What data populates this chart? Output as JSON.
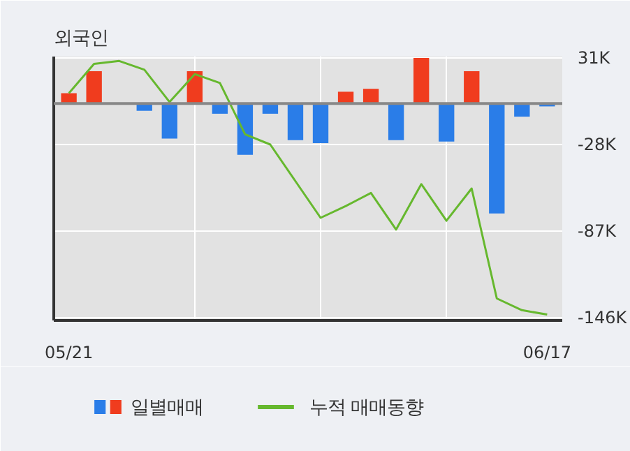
{
  "chart_data": {
    "type": "bar",
    "title": "외국인",
    "categories": [
      "05/21",
      null,
      null,
      null,
      null,
      null,
      null,
      null,
      null,
      null,
      null,
      null,
      null,
      null,
      null,
      null,
      null,
      null,
      null,
      "06/17"
    ],
    "series": [
      {
        "name": "일별매매",
        "values": [
          7,
          22,
          0,
          -5,
          -24,
          22,
          -7,
          -35,
          -7,
          -25,
          -27,
          8,
          10,
          -25,
          31,
          -26,
          22,
          -75,
          -9,
          -2
        ],
        "colors": [
          "#f03c1e",
          "#f03c1e",
          "#f03c1e",
          "#2a7de8",
          "#2a7de8",
          "#f03c1e",
          "#2a7de8",
          "#2a7de8",
          "#2a7de8",
          "#2a7de8",
          "#2a7de8",
          "#f03c1e",
          "#f03c1e",
          "#2a7de8",
          "#f03c1e",
          "#2a7de8",
          "#f03c1e",
          "#2a7de8",
          "#2a7de8",
          "#2a7de8"
        ]
      },
      {
        "name": "누적 매매동향",
        "type": "line",
        "color": "#66b82e",
        "values": [
          7,
          27,
          29,
          23,
          1,
          20,
          14,
          -21,
          -28,
          -53,
          -78,
          -70,
          -61,
          -86,
          -55,
          -80,
          -58,
          -133,
          -141,
          -144
        ]
      }
    ],
    "ylim": [
      -148,
      32
    ],
    "yticks": [
      {
        "value": 31,
        "label": "31K"
      },
      {
        "value": -28,
        "label": "-28K"
      },
      {
        "value": -87,
        "label": "-87K"
      },
      {
        "value": -146,
        "label": "-146K"
      }
    ],
    "ref_lines": [
      {
        "axis": "y",
        "value": 0,
        "color": "#888888"
      }
    ],
    "grid": true,
    "legend": "bottom"
  }
}
